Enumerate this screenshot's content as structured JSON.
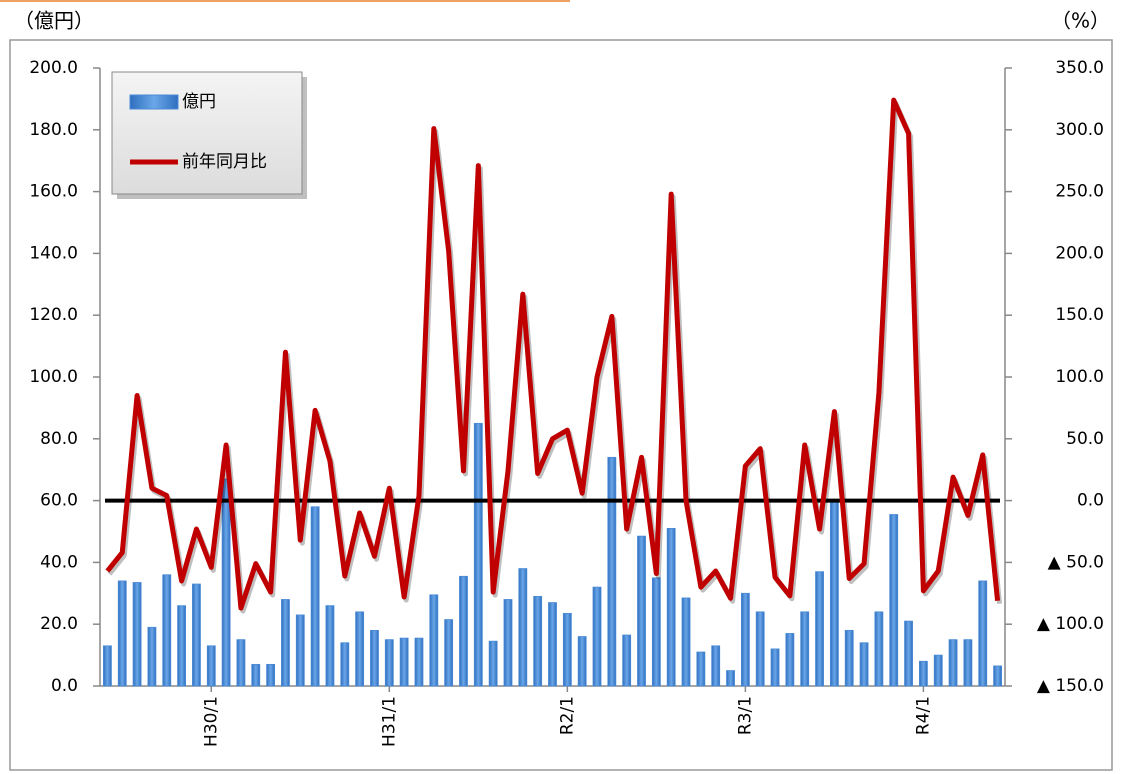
{
  "chart_data": {
    "type": "bar-line",
    "y_unit_label": "（億円）",
    "y2_unit_label": "（%）",
    "categories": [
      null,
      null,
      null,
      null,
      null,
      null,
      null,
      "H30/1",
      null,
      null,
      null,
      null,
      null,
      null,
      null,
      null,
      null,
      null,
      null,
      "H31/1",
      null,
      null,
      null,
      null,
      null,
      null,
      null,
      null,
      null,
      null,
      null,
      "R2/1",
      null,
      null,
      null,
      null,
      null,
      null,
      null,
      null,
      null,
      null,
      null,
      "R3/1",
      null,
      null,
      null,
      null,
      null,
      null,
      null,
      null,
      null,
      null,
      null,
      "R4/1",
      null,
      null,
      null,
      null,
      null
    ],
    "series": [
      {
        "name": "億円",
        "type": "bar",
        "color": "#4a8ad6",
        "values": [
          13,
          34,
          33.5,
          19,
          36,
          26,
          33,
          13,
          67,
          15,
          7,
          7,
          28,
          23,
          58,
          26,
          14,
          24,
          18,
          15,
          15.5,
          15.5,
          29.5,
          21.5,
          35.5,
          85,
          14.5,
          28,
          38,
          29,
          27,
          23.5,
          16,
          32,
          74,
          16.5,
          48.5,
          35,
          51,
          28.5,
          11,
          13,
          5,
          30,
          24,
          12,
          17,
          24,
          37,
          60,
          18,
          14,
          24,
          55.5,
          21,
          8,
          10,
          15,
          15,
          34,
          6.5
        ]
      },
      {
        "name": "前年同月比",
        "type": "line",
        "axis": "y2",
        "color": "#c00000",
        "values": [
          -57,
          -42,
          85,
          10,
          4,
          -65,
          -23,
          -54,
          45,
          -87,
          -51,
          -74,
          120,
          -32,
          73,
          32,
          -61,
          -10,
          -45,
          10,
          -78,
          4,
          301,
          202,
          24,
          271,
          -74,
          24,
          167,
          22,
          50,
          57,
          6,
          100,
          149,
          -23,
          35,
          -59,
          248,
          0,
          -70,
          -57,
          -79,
          28,
          42,
          -62,
          -77,
          45,
          -23,
          72,
          -63,
          -51,
          87,
          324,
          297,
          -73,
          -57,
          19,
          -12,
          37,
          -81
        ]
      }
    ],
    "ylim": [
      0,
      200
    ],
    "yticks": [
      {
        "value": 0,
        "label": "0.0"
      },
      {
        "value": 20,
        "label": "20.0"
      },
      {
        "value": 40,
        "label": "40.0"
      },
      {
        "value": 60,
        "label": "60.0"
      },
      {
        "value": 80,
        "label": "80.0"
      },
      {
        "value": 100,
        "label": "100.0"
      },
      {
        "value": 120,
        "label": "120.0"
      },
      {
        "value": 140,
        "label": "140.0"
      },
      {
        "value": 160,
        "label": "160.0"
      },
      {
        "value": 180,
        "label": "180.0"
      },
      {
        "value": 200,
        "label": "200.0"
      }
    ],
    "y2lim": [
      -150,
      350
    ],
    "y2ticks": [
      {
        "value": 350,
        "label": "350.0"
      },
      {
        "value": 300,
        "label": "300.0"
      },
      {
        "value": 250,
        "label": "250.0"
      },
      {
        "value": 200,
        "label": "200.0"
      },
      {
        "value": 150,
        "label": "150.0"
      },
      {
        "value": 100,
        "label": "100.0"
      },
      {
        "value": 50,
        "label": "50.0"
      },
      {
        "value": 0,
        "label": "0.0"
      },
      {
        "value": -50,
        "label": "▲ 50.0"
      },
      {
        "value": -100,
        "label": "▲ 100.0"
      },
      {
        "value": -150,
        "label": "▲ 150.0"
      }
    ],
    "legend": "top-left"
  }
}
